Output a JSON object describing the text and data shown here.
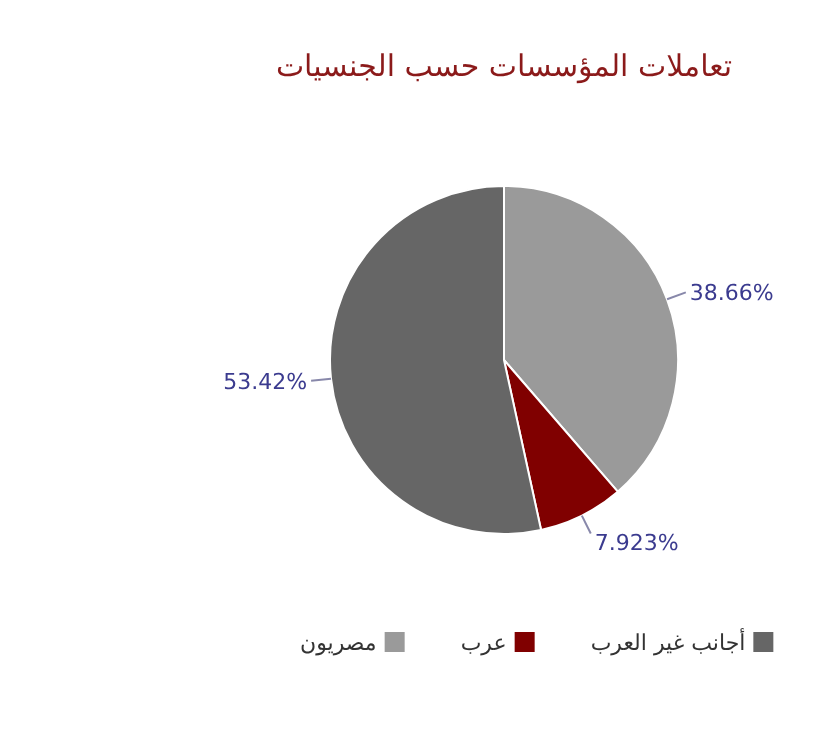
{
  "chart_data": {
    "type": "pie",
    "title": "تعاملات المؤسسات حسب الجنسيات",
    "categories": [
      "مصريون",
      "عرب",
      "أجانب غير العرب"
    ],
    "values": [
      38.66,
      7.923,
      53.42
    ],
    "colors": [
      "#9a9a9a",
      "#800000",
      "#666666"
    ],
    "value_labels": [
      "38.66%",
      "7.923%",
      "53.42%"
    ],
    "legend": "bottom"
  }
}
